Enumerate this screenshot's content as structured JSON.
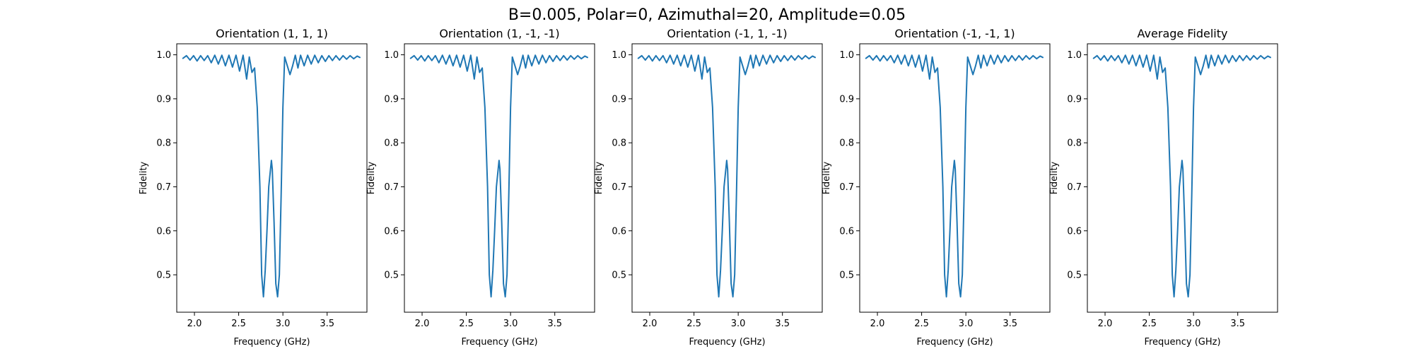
{
  "figure": {
    "suptitle": "B=0.005, Polar=0, Azimuthal=20, Amplitude=0.05"
  },
  "colors": {
    "line": "#1f77b4",
    "axes": "#000000",
    "background": "#ffffff"
  },
  "chart_data": [
    {
      "type": "line",
      "title": "Orientation (1, 1, 1)",
      "xlabel": "Frequency (GHz)",
      "ylabel": "Fidelity",
      "xlim": [
        1.8,
        3.95
      ],
      "ylim": [
        0.415,
        1.025
      ],
      "xticks": [
        "2.0",
        "2.5",
        "3.0",
        "3.5"
      ],
      "yticks": [
        "0.5",
        "0.6",
        "0.7",
        "0.8",
        "0.9",
        "1.0"
      ],
      "grid": false,
      "series": [
        {
          "x": [
            1.87,
            1.91,
            1.95,
            1.99,
            2.03,
            2.07,
            2.11,
            2.15,
            2.19,
            2.23,
            2.27,
            2.31,
            2.35,
            2.39,
            2.43,
            2.47,
            2.51,
            2.55,
            2.59,
            2.62,
            2.65,
            2.68,
            2.71,
            2.74,
            2.76,
            2.78,
            2.8,
            2.82,
            2.84,
            2.86,
            2.87,
            2.88,
            2.9,
            2.92,
            2.94,
            2.96,
            2.98,
            3.0,
            3.02,
            3.05,
            3.08,
            3.11,
            3.14,
            3.17,
            3.2,
            3.24,
            3.28,
            3.32,
            3.36,
            3.4,
            3.44,
            3.48,
            3.52,
            3.56,
            3.6,
            3.64,
            3.68,
            3.72,
            3.76,
            3.8,
            3.84,
            3.87
          ],
          "y": [
            0.992,
            0.998,
            0.988,
            0.998,
            0.986,
            0.998,
            0.987,
            0.998,
            0.982,
            0.999,
            0.979,
            0.999,
            0.975,
            0.999,
            0.972,
            0.999,
            0.963,
            0.999,
            0.945,
            0.995,
            0.96,
            0.97,
            0.88,
            0.7,
            0.5,
            0.45,
            0.51,
            0.6,
            0.7,
            0.74,
            0.76,
            0.74,
            0.62,
            0.48,
            0.45,
            0.5,
            0.68,
            0.88,
            0.995,
            0.975,
            0.955,
            0.975,
            0.999,
            0.97,
            0.999,
            0.975,
            0.999,
            0.979,
            0.999,
            0.982,
            0.998,
            0.985,
            0.998,
            0.987,
            0.998,
            0.988,
            0.998,
            0.99,
            0.998,
            0.991,
            0.997,
            0.994
          ]
        }
      ]
    },
    {
      "type": "line",
      "title": "Orientation (1, -1, -1)",
      "xlabel": "Frequency (GHz)",
      "ylabel": "Fidelity",
      "xlim": [
        1.8,
        3.95
      ],
      "ylim": [
        0.415,
        1.025
      ],
      "xticks": [
        "2.0",
        "2.5",
        "3.0",
        "3.5"
      ],
      "yticks": [
        "0.5",
        "0.6",
        "0.7",
        "0.8",
        "0.9",
        "1.0"
      ],
      "grid": false,
      "series": [
        {
          "x": [
            1.87,
            1.91,
            1.95,
            1.99,
            2.03,
            2.07,
            2.11,
            2.15,
            2.19,
            2.23,
            2.27,
            2.31,
            2.35,
            2.39,
            2.43,
            2.47,
            2.51,
            2.55,
            2.59,
            2.62,
            2.65,
            2.68,
            2.71,
            2.74,
            2.76,
            2.78,
            2.8,
            2.82,
            2.84,
            2.86,
            2.87,
            2.88,
            2.9,
            2.92,
            2.94,
            2.96,
            2.98,
            3.0,
            3.02,
            3.05,
            3.08,
            3.11,
            3.14,
            3.17,
            3.2,
            3.24,
            3.28,
            3.32,
            3.36,
            3.4,
            3.44,
            3.48,
            3.52,
            3.56,
            3.6,
            3.64,
            3.68,
            3.72,
            3.76,
            3.8,
            3.84,
            3.87
          ],
          "y": [
            0.992,
            0.998,
            0.988,
            0.998,
            0.986,
            0.998,
            0.987,
            0.998,
            0.982,
            0.999,
            0.979,
            0.999,
            0.975,
            0.999,
            0.972,
            0.999,
            0.963,
            0.999,
            0.945,
            0.995,
            0.96,
            0.97,
            0.88,
            0.7,
            0.5,
            0.45,
            0.51,
            0.6,
            0.7,
            0.74,
            0.76,
            0.74,
            0.62,
            0.48,
            0.45,
            0.5,
            0.68,
            0.88,
            0.995,
            0.975,
            0.955,
            0.975,
            0.999,
            0.97,
            0.999,
            0.975,
            0.999,
            0.979,
            0.999,
            0.982,
            0.998,
            0.985,
            0.998,
            0.987,
            0.998,
            0.988,
            0.998,
            0.99,
            0.998,
            0.991,
            0.997,
            0.994
          ]
        }
      ]
    },
    {
      "type": "line",
      "title": "Orientation (-1, 1, -1)",
      "xlabel": "Frequency (GHz)",
      "ylabel": "Fidelity",
      "xlim": [
        1.8,
        3.95
      ],
      "ylim": [
        0.415,
        1.025
      ],
      "xticks": [
        "2.0",
        "2.5",
        "3.0",
        "3.5"
      ],
      "yticks": [
        "0.5",
        "0.6",
        "0.7",
        "0.8",
        "0.9",
        "1.0"
      ],
      "grid": false,
      "series": [
        {
          "x": [
            1.87,
            1.91,
            1.95,
            1.99,
            2.03,
            2.07,
            2.11,
            2.15,
            2.19,
            2.23,
            2.27,
            2.31,
            2.35,
            2.39,
            2.43,
            2.47,
            2.51,
            2.55,
            2.59,
            2.62,
            2.65,
            2.68,
            2.71,
            2.74,
            2.76,
            2.78,
            2.8,
            2.82,
            2.84,
            2.86,
            2.87,
            2.88,
            2.9,
            2.92,
            2.94,
            2.96,
            2.98,
            3.0,
            3.02,
            3.05,
            3.08,
            3.11,
            3.14,
            3.17,
            3.2,
            3.24,
            3.28,
            3.32,
            3.36,
            3.4,
            3.44,
            3.48,
            3.52,
            3.56,
            3.6,
            3.64,
            3.68,
            3.72,
            3.76,
            3.8,
            3.84,
            3.87
          ],
          "y": [
            0.992,
            0.998,
            0.988,
            0.998,
            0.986,
            0.998,
            0.987,
            0.998,
            0.982,
            0.999,
            0.979,
            0.999,
            0.975,
            0.999,
            0.972,
            0.999,
            0.963,
            0.999,
            0.945,
            0.995,
            0.96,
            0.97,
            0.88,
            0.7,
            0.5,
            0.45,
            0.51,
            0.6,
            0.7,
            0.74,
            0.76,
            0.74,
            0.62,
            0.48,
            0.45,
            0.5,
            0.68,
            0.88,
            0.995,
            0.975,
            0.955,
            0.975,
            0.999,
            0.97,
            0.999,
            0.975,
            0.999,
            0.979,
            0.999,
            0.982,
            0.998,
            0.985,
            0.998,
            0.987,
            0.998,
            0.988,
            0.998,
            0.99,
            0.998,
            0.991,
            0.997,
            0.994
          ]
        }
      ]
    },
    {
      "type": "line",
      "title": "Orientation (-1, -1, 1)",
      "xlabel": "Frequency (GHz)",
      "ylabel": "Fidelity",
      "xlim": [
        1.8,
        3.95
      ],
      "ylim": [
        0.415,
        1.025
      ],
      "xticks": [
        "2.0",
        "2.5",
        "3.0",
        "3.5"
      ],
      "yticks": [
        "0.5",
        "0.6",
        "0.7",
        "0.8",
        "0.9",
        "1.0"
      ],
      "grid": false,
      "series": [
        {
          "x": [
            1.87,
            1.91,
            1.95,
            1.99,
            2.03,
            2.07,
            2.11,
            2.15,
            2.19,
            2.23,
            2.27,
            2.31,
            2.35,
            2.39,
            2.43,
            2.47,
            2.51,
            2.55,
            2.59,
            2.62,
            2.65,
            2.68,
            2.71,
            2.74,
            2.76,
            2.78,
            2.8,
            2.82,
            2.84,
            2.86,
            2.87,
            2.88,
            2.9,
            2.92,
            2.94,
            2.96,
            2.98,
            3.0,
            3.02,
            3.05,
            3.08,
            3.11,
            3.14,
            3.17,
            3.2,
            3.24,
            3.28,
            3.32,
            3.36,
            3.4,
            3.44,
            3.48,
            3.52,
            3.56,
            3.6,
            3.64,
            3.68,
            3.72,
            3.76,
            3.8,
            3.84,
            3.87
          ],
          "y": [
            0.992,
            0.998,
            0.988,
            0.998,
            0.986,
            0.998,
            0.987,
            0.998,
            0.982,
            0.999,
            0.979,
            0.999,
            0.975,
            0.999,
            0.972,
            0.999,
            0.963,
            0.999,
            0.945,
            0.995,
            0.96,
            0.97,
            0.88,
            0.7,
            0.5,
            0.45,
            0.51,
            0.6,
            0.7,
            0.74,
            0.76,
            0.74,
            0.62,
            0.48,
            0.45,
            0.5,
            0.68,
            0.88,
            0.995,
            0.975,
            0.955,
            0.975,
            0.999,
            0.97,
            0.999,
            0.975,
            0.999,
            0.979,
            0.999,
            0.982,
            0.998,
            0.985,
            0.998,
            0.987,
            0.998,
            0.988,
            0.998,
            0.99,
            0.998,
            0.991,
            0.997,
            0.994
          ]
        }
      ]
    },
    {
      "type": "line",
      "title": "Average Fidelity",
      "xlabel": "Frequency (GHz)",
      "ylabel": "Fidelity",
      "xlim": [
        1.8,
        3.95
      ],
      "ylim": [
        0.415,
        1.025
      ],
      "xticks": [
        "2.0",
        "2.5",
        "3.0",
        "3.5"
      ],
      "yticks": [
        "0.5",
        "0.6",
        "0.7",
        "0.8",
        "0.9",
        "1.0"
      ],
      "grid": false,
      "series": [
        {
          "x": [
            1.87,
            1.91,
            1.95,
            1.99,
            2.03,
            2.07,
            2.11,
            2.15,
            2.19,
            2.23,
            2.27,
            2.31,
            2.35,
            2.39,
            2.43,
            2.47,
            2.51,
            2.55,
            2.59,
            2.62,
            2.65,
            2.68,
            2.71,
            2.74,
            2.76,
            2.78,
            2.8,
            2.82,
            2.84,
            2.86,
            2.87,
            2.88,
            2.9,
            2.92,
            2.94,
            2.96,
            2.98,
            3.0,
            3.02,
            3.05,
            3.08,
            3.11,
            3.14,
            3.17,
            3.2,
            3.24,
            3.28,
            3.32,
            3.36,
            3.4,
            3.44,
            3.48,
            3.52,
            3.56,
            3.6,
            3.64,
            3.68,
            3.72,
            3.76,
            3.8,
            3.84,
            3.87
          ],
          "y": [
            0.992,
            0.998,
            0.988,
            0.998,
            0.986,
            0.998,
            0.987,
            0.998,
            0.982,
            0.999,
            0.979,
            0.999,
            0.975,
            0.999,
            0.972,
            0.999,
            0.963,
            0.999,
            0.945,
            0.995,
            0.96,
            0.97,
            0.88,
            0.7,
            0.5,
            0.45,
            0.51,
            0.6,
            0.7,
            0.74,
            0.76,
            0.74,
            0.62,
            0.48,
            0.45,
            0.5,
            0.68,
            0.88,
            0.995,
            0.975,
            0.955,
            0.975,
            0.999,
            0.97,
            0.999,
            0.975,
            0.999,
            0.979,
            0.999,
            0.982,
            0.998,
            0.985,
            0.998,
            0.987,
            0.998,
            0.988,
            0.998,
            0.99,
            0.998,
            0.991,
            0.997,
            0.994
          ]
        }
      ]
    }
  ]
}
